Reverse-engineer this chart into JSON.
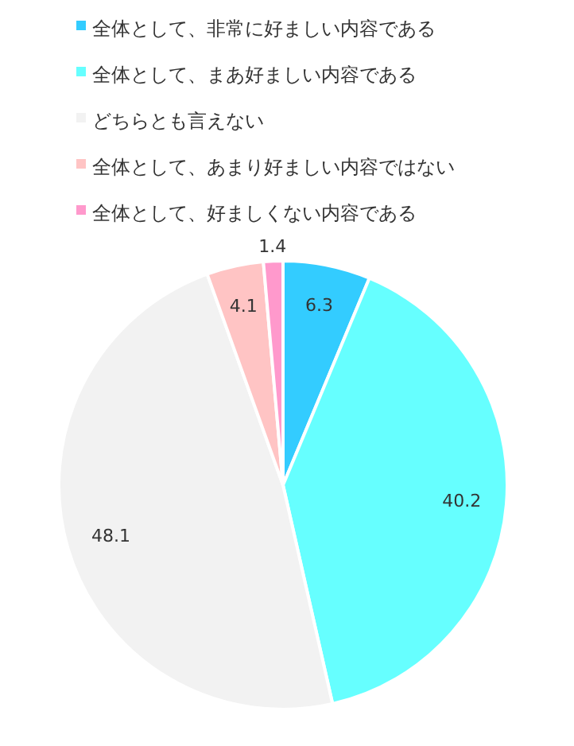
{
  "chart_data": {
    "type": "pie",
    "categories": [
      "全体として、非常に好ましい内容である",
      "全体として、まあ好ましい内容である",
      "どちらとも言えない",
      "全体として、あまり好ましい内容ではない",
      "全体として、好ましくない内容である"
    ],
    "values": [
      6.3,
      40.2,
      48.1,
      4.1,
      1.4
    ],
    "colors": [
      "#33ccff",
      "#66ffff",
      "#f2f2f2",
      "#ffc4c4",
      "#ff99cc"
    ],
    "data_labels": true,
    "legend": "top"
  }
}
